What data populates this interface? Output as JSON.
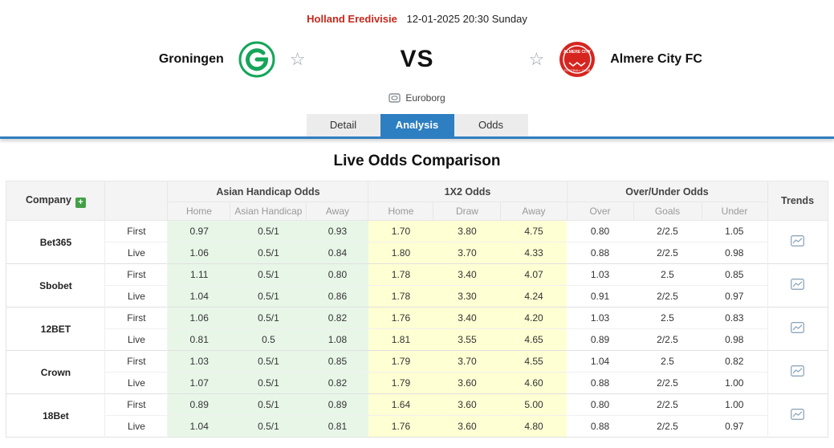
{
  "match_header": {
    "league": "Holland Eredivisie",
    "datetime": "12-01-2025 20:30 Sunday",
    "home_team": "Groningen",
    "away_team": "Almere City FC",
    "vs_label": "VS",
    "venue": "Euroborg"
  },
  "tabs": {
    "items": [
      {
        "label": "Detail",
        "active": false
      },
      {
        "label": "Analysis",
        "active": true
      },
      {
        "label": "Odds",
        "active": false
      }
    ]
  },
  "section": {
    "title": "Live Odds Comparison"
  },
  "icons": {
    "favorite_star": "star-outline",
    "venue": "stadium-icon",
    "company_add": "plus-icon",
    "trends": "line-chart-icon"
  },
  "colors": {
    "accent_blue": "#2e7fc1",
    "league_red": "#c5281c",
    "asian_handicap_bg": "#e8f6e8",
    "x12_bg": "#ffffd4",
    "header_bg": "#f4f4f4",
    "home_logo_green": "#15a55a",
    "away_logo_red": "#d6251f"
  },
  "odds_table": {
    "company_header": "Company",
    "company_add_label": "+",
    "trends_header": "Trends",
    "groups": [
      {
        "label": "Asian Handicap Odds",
        "sub": [
          "Home",
          "Asian Handicap",
          "Away"
        ]
      },
      {
        "label": "1X2 Odds",
        "sub": [
          "Home",
          "Draw",
          "Away"
        ]
      },
      {
        "label": "Over/Under Odds",
        "sub": [
          "Over",
          "Goals",
          "Under"
        ]
      }
    ],
    "companies": [
      {
        "name": "Bet365",
        "rows": [
          {
            "label": "First",
            "asian_handicap": [
              "0.97",
              "0.5/1",
              "0.93"
            ],
            "x12": [
              "1.70",
              "3.80",
              "4.75"
            ],
            "over_under": [
              "0.80",
              "2/2.5",
              "1.05"
            ]
          },
          {
            "label": "Live",
            "asian_handicap": [
              "1.06",
              "0.5/1",
              "0.84"
            ],
            "x12": [
              "1.80",
              "3.70",
              "4.33"
            ],
            "over_under": [
              "0.88",
              "2/2.5",
              "0.98"
            ]
          }
        ]
      },
      {
        "name": "Sbobet",
        "rows": [
          {
            "label": "First",
            "asian_handicap": [
              "1.11",
              "0.5/1",
              "0.80"
            ],
            "x12": [
              "1.78",
              "3.40",
              "4.07"
            ],
            "over_under": [
              "1.03",
              "2.5",
              "0.85"
            ]
          },
          {
            "label": "Live",
            "asian_handicap": [
              "1.04",
              "0.5/1",
              "0.86"
            ],
            "x12": [
              "1.78",
              "3.30",
              "4.24"
            ],
            "over_under": [
              "0.91",
              "2/2.5",
              "0.97"
            ]
          }
        ]
      },
      {
        "name": "12BET",
        "rows": [
          {
            "label": "First",
            "asian_handicap": [
              "1.06",
              "0.5/1",
              "0.82"
            ],
            "x12": [
              "1.76",
              "3.40",
              "4.20"
            ],
            "over_under": [
              "1.03",
              "2.5",
              "0.83"
            ]
          },
          {
            "label": "Live",
            "asian_handicap": [
              "0.81",
              "0.5",
              "1.08"
            ],
            "x12": [
              "1.81",
              "3.55",
              "4.65"
            ],
            "over_under": [
              "0.89",
              "2/2.5",
              "0.98"
            ]
          }
        ]
      },
      {
        "name": "Crown",
        "rows": [
          {
            "label": "First",
            "asian_handicap": [
              "1.03",
              "0.5/1",
              "0.85"
            ],
            "x12": [
              "1.79",
              "3.70",
              "4.55"
            ],
            "over_under": [
              "1.04",
              "2.5",
              "0.82"
            ]
          },
          {
            "label": "Live",
            "asian_handicap": [
              "1.07",
              "0.5/1",
              "0.82"
            ],
            "x12": [
              "1.79",
              "3.60",
              "4.60"
            ],
            "over_under": [
              "0.88",
              "2/2.5",
              "1.00"
            ]
          }
        ]
      },
      {
        "name": "18Bet",
        "rows": [
          {
            "label": "First",
            "asian_handicap": [
              "0.89",
              "0.5/1",
              "0.89"
            ],
            "x12": [
              "1.64",
              "3.60",
              "5.00"
            ],
            "over_under": [
              "0.80",
              "2/2.5",
              "1.00"
            ]
          },
          {
            "label": "Live",
            "asian_handicap": [
              "1.04",
              "0.5/1",
              "0.81"
            ],
            "x12": [
              "1.76",
              "3.60",
              "4.80"
            ],
            "over_under": [
              "0.88",
              "2/2.5",
              "0.97"
            ]
          }
        ]
      }
    ]
  }
}
